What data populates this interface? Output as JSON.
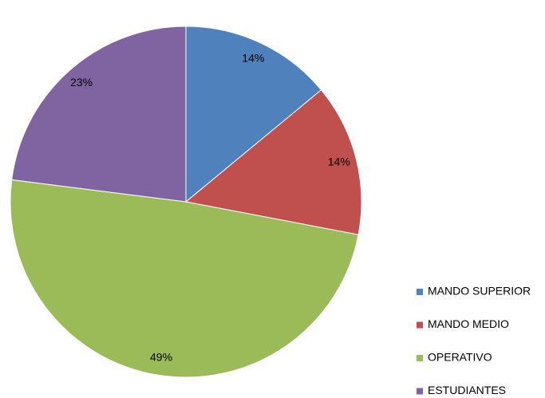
{
  "chart_data": {
    "type": "pie",
    "categories": [
      "MANDO SUPERIOR",
      "MANDO MEDIO",
      "OPERATIVO",
      "ESTUDIANTES"
    ],
    "values": [
      14,
      14,
      49,
      23
    ],
    "value_labels": [
      "14%",
      "14%",
      "49%",
      "23%"
    ],
    "colors": [
      "#4f81bd",
      "#c0504d",
      "#9bbb59",
      "#8064a2"
    ],
    "legend": "right"
  }
}
